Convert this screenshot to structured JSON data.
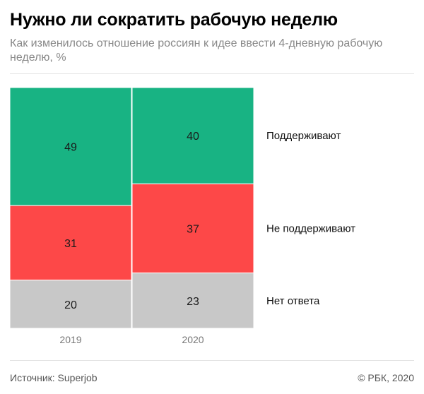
{
  "header": {
    "title": "Нужно ли сократить рабочую неделю",
    "subtitle": "Как изменилось отношение россиян к идее ввести 4-дневную рабочую неделю, %"
  },
  "chart_data": {
    "type": "bar",
    "stacked": true,
    "percent": true,
    "categories": [
      "2019",
      "2020"
    ],
    "series": [
      {
        "name": "Поддерживают",
        "values": [
          49,
          40
        ],
        "color": "#18b383",
        "label_color": "#1a1a1a"
      },
      {
        "name": "Не поддерживают",
        "values": [
          31,
          37
        ],
        "color": "#fd4848",
        "label_color": "#1a1a1a"
      },
      {
        "name": "Нет ответа",
        "values": [
          20,
          23
        ],
        "color": "#c8c8c8",
        "label_color": "#1a1a1a"
      }
    ],
    "ylim": [
      0,
      100
    ],
    "legend_placement": "right, aligned with 2020 segments",
    "grid": false,
    "data_labels": true
  },
  "footer": {
    "source": "Источник: Superjob",
    "copyright": "© РБК, 2020"
  }
}
